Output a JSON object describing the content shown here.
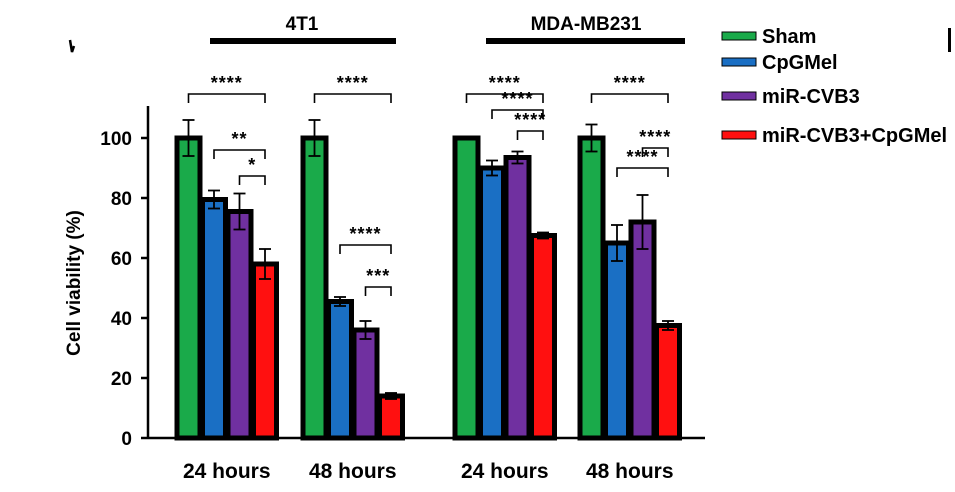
{
  "chart_data": {
    "type": "bar",
    "xlabel": "",
    "ylabel": "Cell viability (%)",
    "ylim": [
      0,
      110
    ],
    "yticks": [
      0,
      20,
      40,
      60,
      80,
      100
    ],
    "categories": [
      "24 hours",
      "48 hours",
      "24 hours",
      "48 hours"
    ],
    "groups": [
      {
        "label": "4T1",
        "categories": [
          0,
          1
        ]
      },
      {
        "label": "MDA-MB231",
        "categories": [
          2,
          3
        ]
      }
    ],
    "series": [
      {
        "name": "Sham",
        "color": "#1aaa4a",
        "values": [
          100,
          100,
          100,
          100
        ],
        "errors": [
          6,
          6,
          0.5,
          4.5
        ]
      },
      {
        "name": "CpGMel",
        "color": "#1a6fc4",
        "values": [
          79.5,
          45.5,
          90,
          65
        ],
        "errors": [
          3,
          1.5,
          2.5,
          6
        ]
      },
      {
        "name": "miR-CVB3",
        "color": "#7030a0",
        "values": [
          75.5,
          36,
          93.5,
          72
        ],
        "errors": [
          6,
          3,
          2,
          9
        ]
      },
      {
        "name": "miR-CVB3+CpGMel",
        "color": "#ff1010",
        "values": [
          58,
          14,
          67.5,
          37.5
        ],
        "errors": [
          5,
          1,
          1,
          1.5
        ]
      }
    ],
    "legend_position": "right",
    "grid": false,
    "significance": [
      {
        "category": 0,
        "from": 0,
        "to": 3,
        "label": "****"
      },
      {
        "category": 0,
        "from": 1,
        "to": 3,
        "label": "**"
      },
      {
        "category": 0,
        "from": 2,
        "to": 3,
        "label": "*"
      },
      {
        "category": 1,
        "from": 0,
        "to": 3,
        "label": "****"
      },
      {
        "category": 1,
        "from": 1,
        "to": 3,
        "label": "****"
      },
      {
        "category": 1,
        "from": 2,
        "to": 3,
        "label": "***"
      },
      {
        "category": 2,
        "from": 0,
        "to": 3,
        "label": "****"
      },
      {
        "category": 2,
        "from": 1,
        "to": 3,
        "label": "****"
      },
      {
        "category": 2,
        "from": 2,
        "to": 3,
        "label": "****"
      },
      {
        "category": 3,
        "from": 0,
        "to": 3,
        "label": "****"
      },
      {
        "category": 3,
        "from": 2,
        "to": 3,
        "label": "****"
      },
      {
        "category": 3,
        "from": 1,
        "to": 3,
        "label": "****"
      }
    ]
  }
}
